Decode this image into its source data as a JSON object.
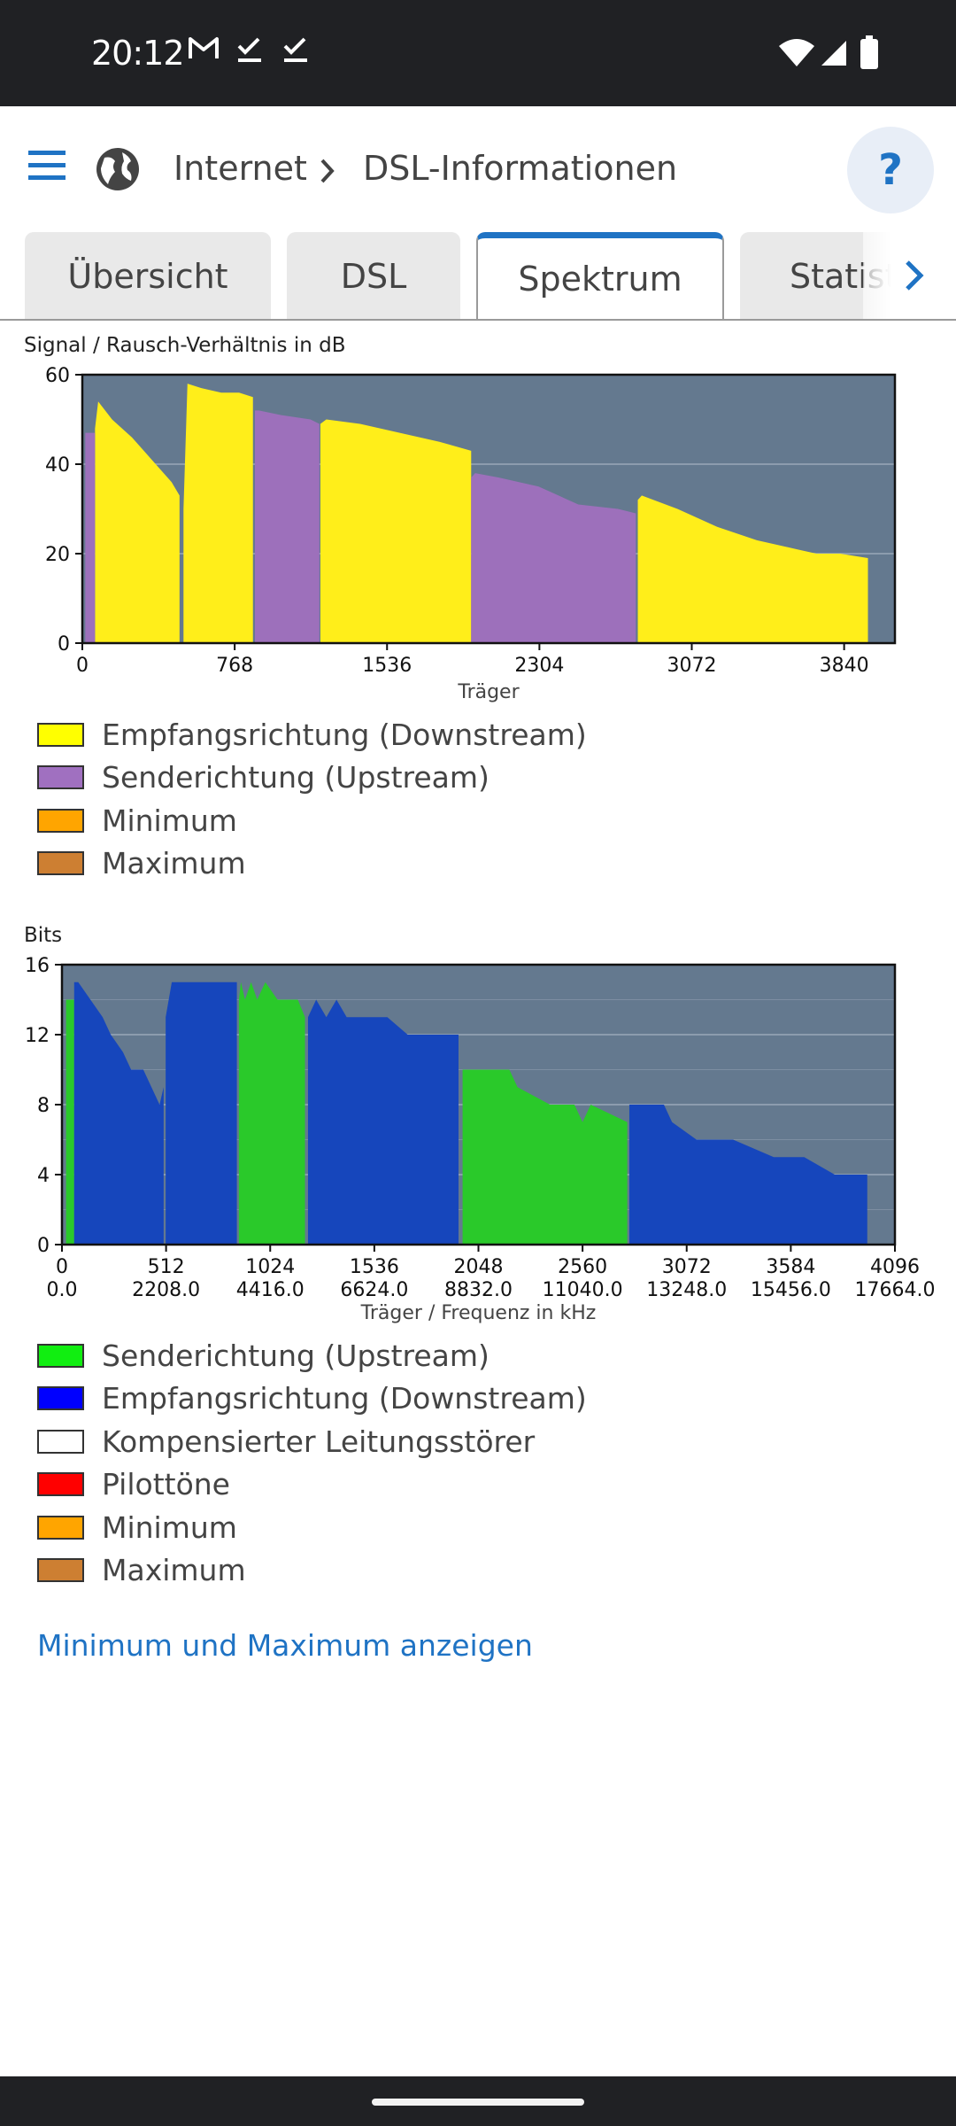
{
  "status_bar": {
    "time": "20:12",
    "notification_icons": [
      "gmail-icon",
      "check-icon",
      "check-icon"
    ],
    "system_icons": [
      "wifi-icon",
      "signal-icon",
      "battery-icon"
    ]
  },
  "app_bar": {
    "breadcrumb": [
      "Internet",
      "DSL-Informationen"
    ],
    "help_label": "?"
  },
  "tabs": [
    {
      "label": "Übersicht",
      "active": false
    },
    {
      "label": "DSL",
      "active": false
    },
    {
      "label": "Spektrum",
      "active": true
    },
    {
      "label": "Statistik",
      "active": false
    }
  ],
  "colors": {
    "accent": "#1f73c4",
    "plot_bg": "#64798f",
    "snr_down": "#ffee1a",
    "snr_up": "#9d70bb",
    "bits_up": "#2ac92a",
    "bits_down": "#1646bc"
  },
  "snr_chart": {
    "title": "Signal / Rausch-Verhältnis in dB",
    "legend": [
      {
        "label": "Empfangsrichtung (Downstream)",
        "color": "#ffff00"
      },
      {
        "label": "Senderichtung (Upstream)",
        "color": "#a070c0"
      },
      {
        "label": "Minimum",
        "color": "#ffa500"
      },
      {
        "label": "Maximum",
        "color": "#cd7f32"
      }
    ]
  },
  "bits_chart": {
    "title": "Bits",
    "legend": [
      {
        "label": "Senderichtung (Upstream)",
        "color": "#11ee11"
      },
      {
        "label": "Empfangsrichtung (Downstream)",
        "color": "#0000ff"
      },
      {
        "label": "Kompensierter Leitungsstörer",
        "color": "#ffffff"
      },
      {
        "label": "Pilottöne",
        "color": "#ff0000"
      },
      {
        "label": "Minimum",
        "color": "#ffa500"
      },
      {
        "label": "Maximum",
        "color": "#cd7f32"
      }
    ]
  },
  "toggle_link": "Minimum und Maximum anzeigen",
  "chart_data": [
    {
      "type": "area",
      "title": "Signal / Rausch-Verhältnis in dB",
      "xlabel": "Träger",
      "ylabel": "",
      "xlim": [
        0,
        4096
      ],
      "ylim": [
        0,
        60
      ],
      "xticks": [
        0,
        768,
        1536,
        2304,
        3072,
        3840
      ],
      "yticks": [
        0,
        20,
        40,
        60
      ],
      "series": [
        {
          "name": "Empfangsrichtung (Downstream)",
          "color": "#ffee1a",
          "segments": [
            {
              "x": [
                64,
                80,
                150,
                250,
                350,
                450,
                490
              ],
              "y": [
                48,
                54,
                50,
                46,
                41,
                36,
                33
              ]
            },
            {
              "x": [
                510,
                530,
                600,
                700,
                790,
                860
              ],
              "y": [
                30,
                58,
                57,
                56,
                56,
                55
              ]
            },
            {
              "x": [
                1200,
                1230,
                1400,
                1600,
                1800,
                1960
              ],
              "y": [
                49,
                50,
                49,
                47,
                45,
                43
              ]
            },
            {
              "x": [
                2800,
                2820,
                3000,
                3200,
                3400,
                3600,
                3700,
                3820,
                3960
              ],
              "y": [
                32,
                33,
                30,
                26,
                23,
                21,
                20,
                20,
                19
              ]
            }
          ]
        },
        {
          "name": "Senderichtung (Upstream)",
          "color": "#9d70bb",
          "segments": [
            {
              "x": [
                15,
                64
              ],
              "y": [
                47,
                47
              ]
            },
            {
              "x": [
                870,
                890,
                1000,
                1150,
                1195
              ],
              "y": [
                52,
                52,
                51,
                50,
                49
              ]
            },
            {
              "x": [
                1960,
                1980,
                2100,
                2300,
                2500,
                2700,
                2790
              ],
              "y": [
                37,
                38,
                37,
                35,
                31,
                30,
                29
              ]
            }
          ]
        }
      ]
    },
    {
      "type": "area",
      "title": "Bits",
      "xlabel": "Träger / Frequenz in kHz",
      "ylabel": "",
      "xlim": [
        0,
        4096
      ],
      "ylim": [
        0,
        16
      ],
      "xticks": [
        0,
        512,
        1024,
        1536,
        2048,
        2560,
        3072,
        3584,
        4096
      ],
      "xticks_secondary": [
        "0.0",
        "2208.0",
        "4416.0",
        "6624.0",
        "8832.0",
        "11040.0",
        "13248.0",
        "15456.0",
        "17664.0"
      ],
      "yticks": [
        0,
        4,
        8,
        12,
        16
      ],
      "series": [
        {
          "name": "Senderichtung (Upstream)",
          "color": "#2ac92a",
          "segments": [
            {
              "x": [
                20,
                30,
                60
              ],
              "y": [
                14,
                14,
                14
              ]
            },
            {
              "x": [
                870,
                880,
                900,
                930,
                960,
                1000,
                1060,
                1160,
                1195
              ],
              "y": [
                14,
                15,
                14,
                15,
                14,
                15,
                14,
                14,
                13
              ]
            },
            {
              "x": [
                1970,
                1980,
                2200,
                2240,
                2400,
                2520,
                2560,
                2600,
                2780
              ],
              "y": [
                10,
                10,
                10,
                9,
                8,
                8,
                7,
                8,
                7
              ]
            }
          ]
        },
        {
          "name": "Empfangsrichtung (Downstream)",
          "color": "#1646bc",
          "segments": [
            {
              "x": [
                60,
                80,
                140,
                200,
                240,
                300,
                340,
                400,
                440,
                480,
                500
              ],
              "y": [
                15,
                15,
                14,
                13,
                12,
                11,
                10,
                10,
                9,
                8,
                9
              ]
            },
            {
              "x": [
                510,
                540,
                600,
                700,
                800,
                860
              ],
              "y": [
                13,
                15,
                15,
                15,
                15,
                15
              ]
            },
            {
              "x": [
                1210,
                1250,
                1300,
                1350,
                1400,
                1600,
                1700,
                1950
              ],
              "y": [
                13,
                14,
                13,
                14,
                13,
                13,
                12,
                12
              ]
            },
            {
              "x": [
                2790,
                2800,
                2960,
                3000,
                3120,
                3300,
                3500,
                3650,
                3800,
                3960
              ],
              "y": [
                8,
                8,
                8,
                7,
                6,
                6,
                5,
                5,
                4,
                4
              ]
            }
          ]
        }
      ]
    }
  ]
}
